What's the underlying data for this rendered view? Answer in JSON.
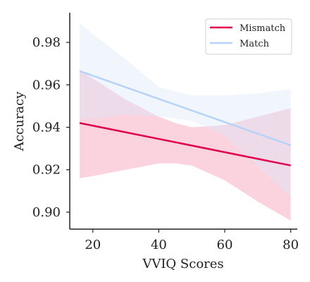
{
  "chart_data": {
    "type": "line",
    "xlabel": "VVIQ Scores",
    "ylabel": "Accuracy",
    "xlim": [
      13,
      82
    ],
    "ylim": [
      0.892,
      0.994
    ],
    "x_ticks": [
      20,
      40,
      60,
      80
    ],
    "y_ticks": [
      0.9,
      0.92,
      0.94,
      0.96,
      0.98
    ],
    "x_tick_labels": [
      "20",
      "40",
      "60",
      "80"
    ],
    "y_tick_labels": [
      "0.90",
      "0.92",
      "0.94",
      "0.96",
      "0.98"
    ],
    "legend_position": "top-right",
    "series": [
      {
        "name": "Mismatch",
        "color": "#e0004d",
        "band_color": "#f7b6c9",
        "x": [
          16,
          80
        ],
        "y": [
          0.942,
          0.922
        ],
        "ci_x": [
          16,
          20,
          30,
          40,
          45,
          50,
          60,
          70,
          80
        ],
        "ci_lower": [
          0.916,
          0.917,
          0.92,
          0.923,
          0.923,
          0.922,
          0.915,
          0.905,
          0.896
        ],
        "ci_upper": [
          0.967,
          0.963,
          0.953,
          0.945,
          0.942,
          0.94,
          0.941,
          0.945,
          0.949
        ]
      },
      {
        "name": "Match",
        "color": "#b6d2f7",
        "band_color": "#dbe8fb",
        "x": [
          16,
          80
        ],
        "y": [
          0.9665,
          0.9315
        ],
        "ci_x": [
          16,
          20,
          30,
          40,
          50,
          60,
          70,
          80
        ],
        "ci_lower": [
          0.944,
          0.944,
          0.946,
          0.945,
          0.943,
          0.936,
          0.922,
          0.907
        ],
        "ci_upper": [
          0.989,
          0.984,
          0.972,
          0.959,
          0.955,
          0.955,
          0.956,
          0.958
        ]
      }
    ]
  }
}
